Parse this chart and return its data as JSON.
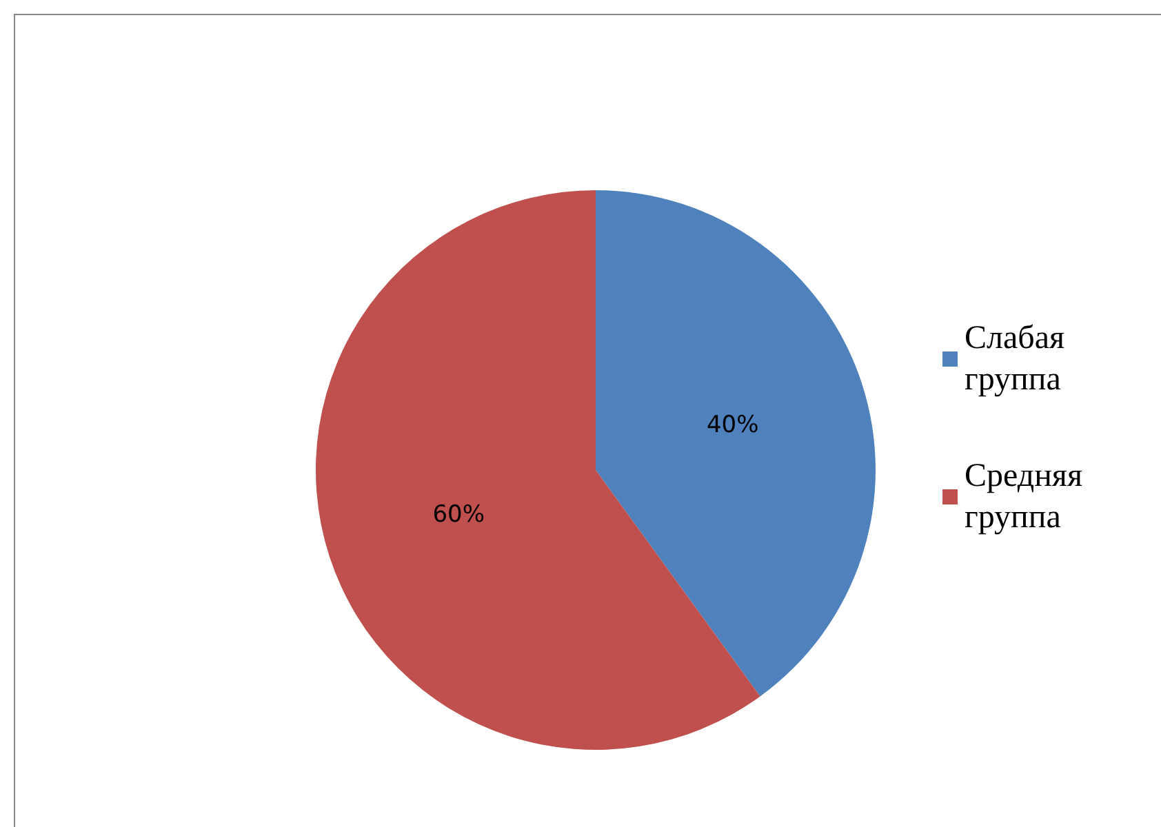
{
  "chart_data": {
    "type": "pie",
    "categories": [
      "Слабая группа",
      "Средняя группа"
    ],
    "values": [
      40,
      60
    ],
    "colors": [
      "#4f81bd",
      "#c0504d"
    ],
    "value_labels": [
      "40%",
      "60%"
    ],
    "legend": "right"
  }
}
